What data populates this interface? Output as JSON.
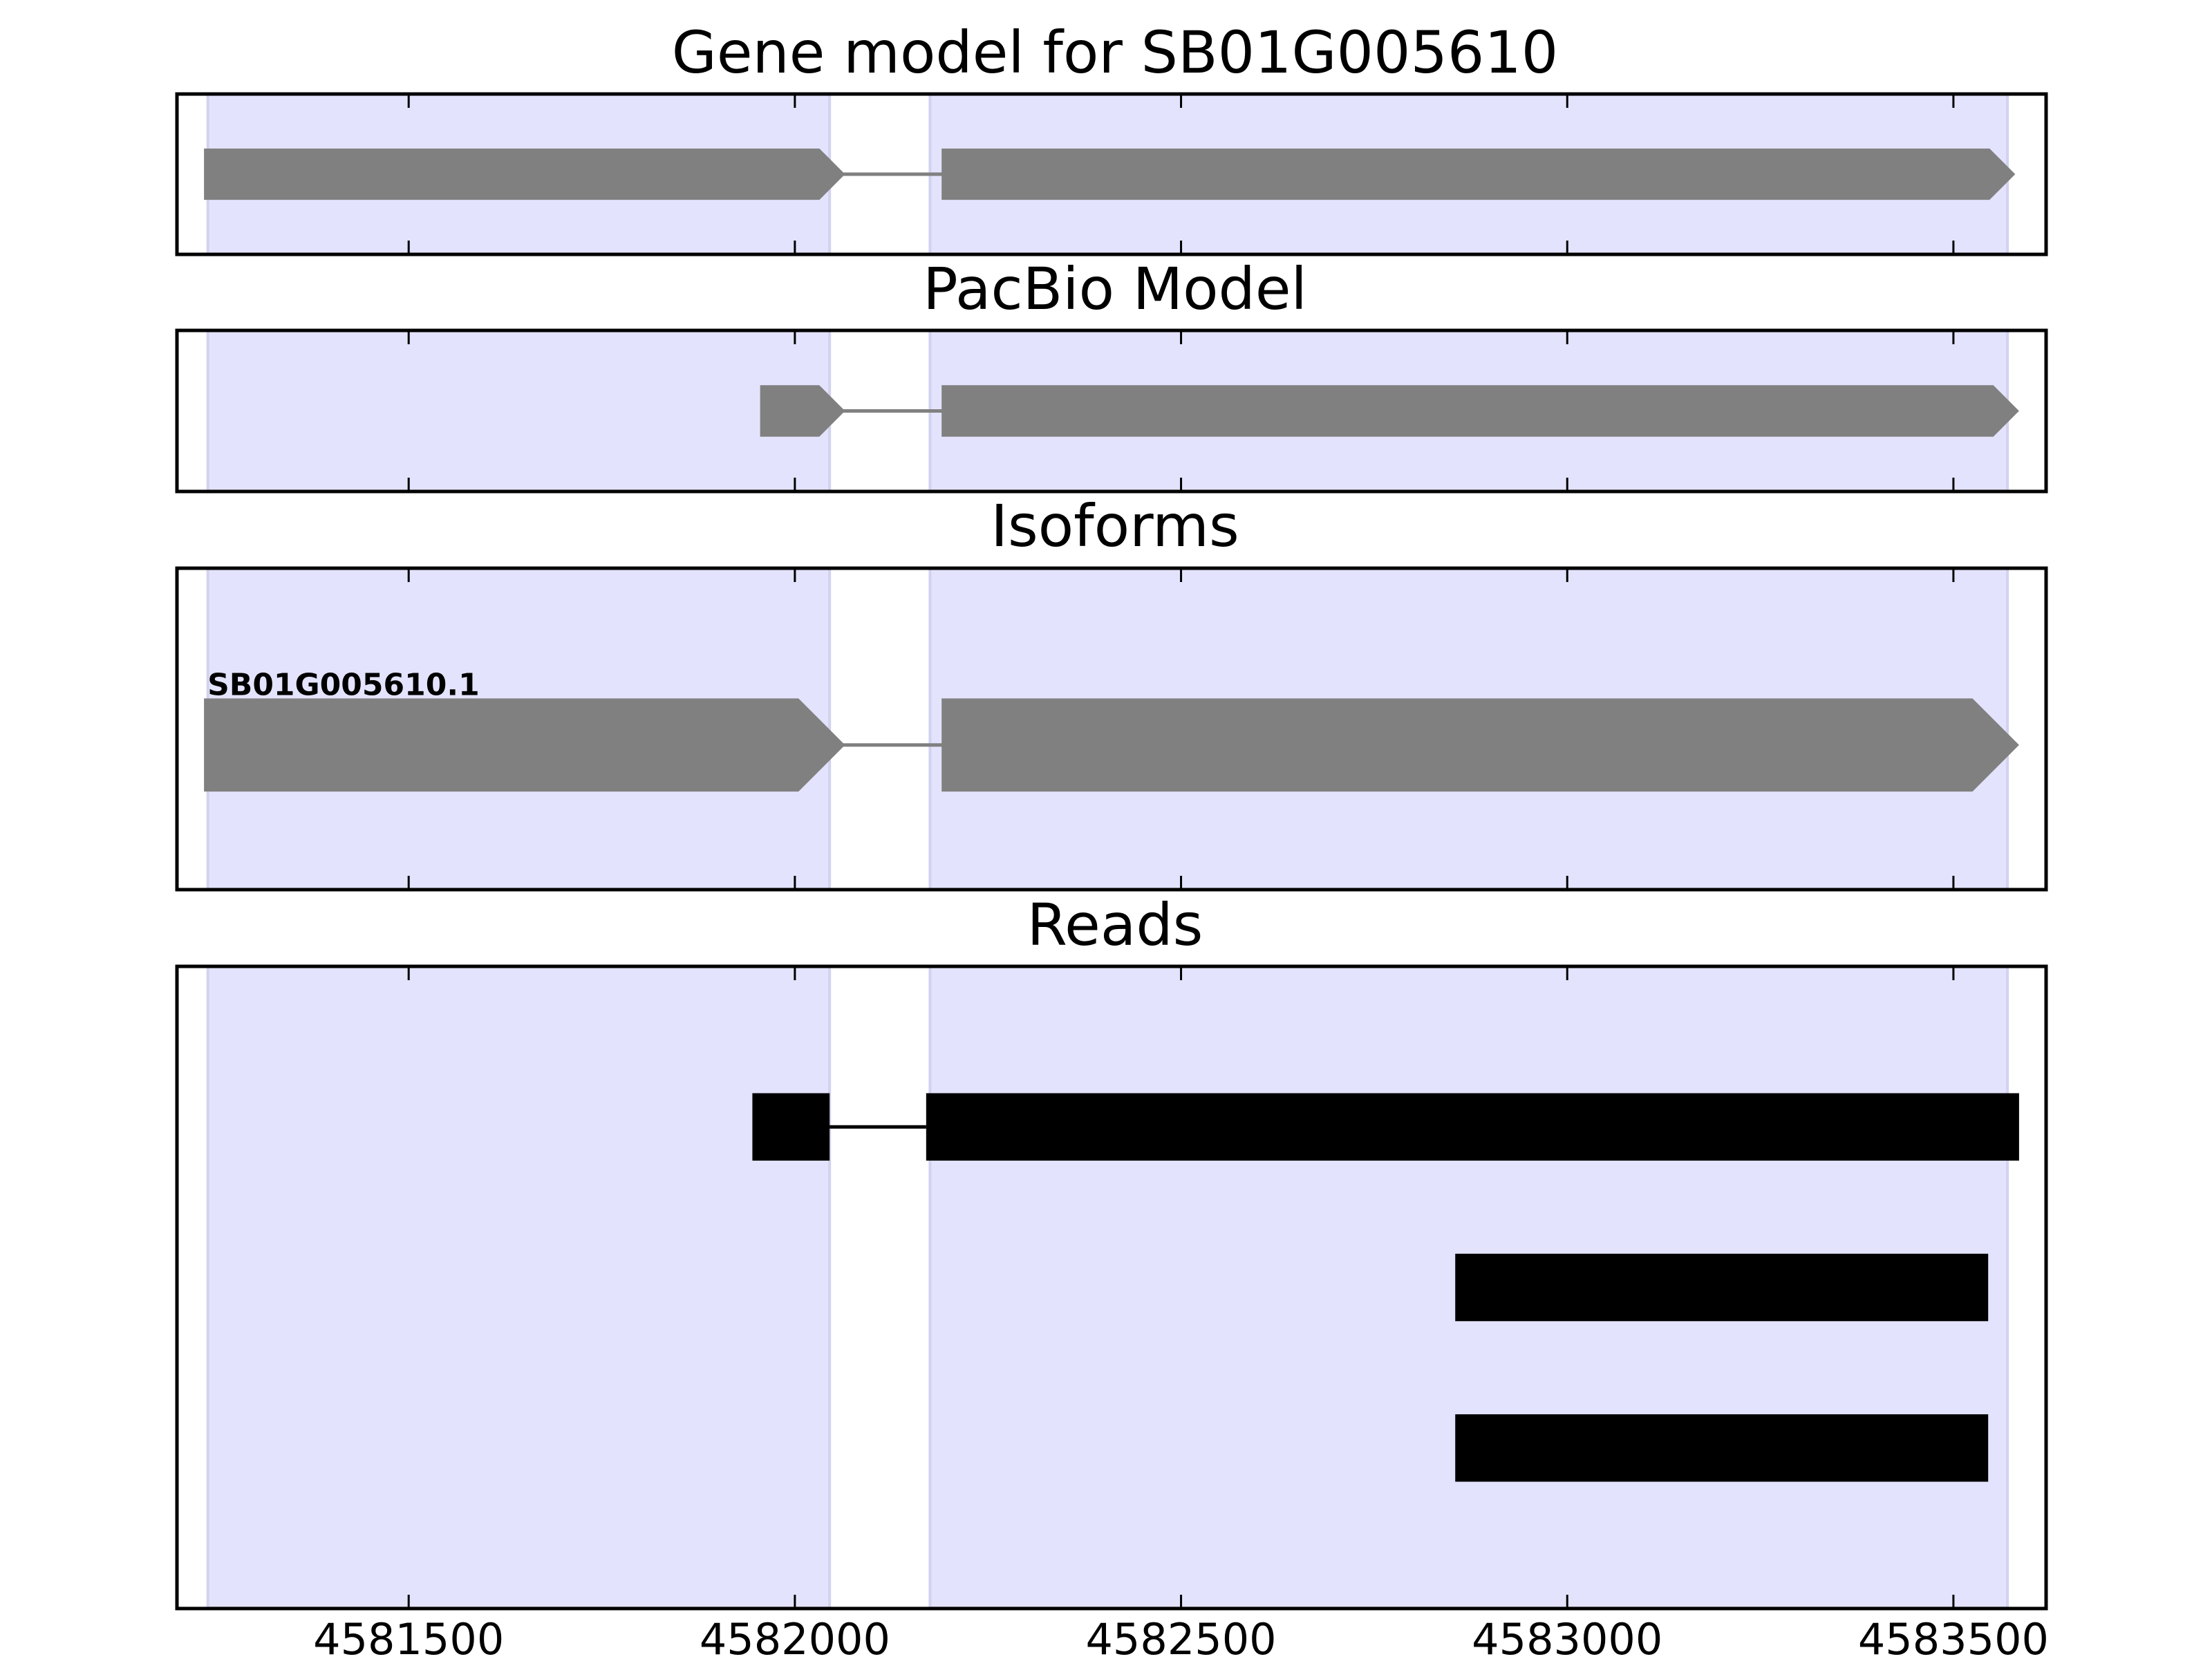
{
  "chart_data": {
    "type": "gene-track",
    "x_range": [
      4581200,
      4583620
    ],
    "x_ticks": [
      4581500,
      4582000,
      4582500,
      4583000,
      4583500
    ],
    "x_tick_labels": [
      "4581500",
      "4582000",
      "4582500",
      "4583000",
      "4583500"
    ],
    "exon_regions": [
      [
        4581240,
        4582045
      ],
      [
        4582175,
        4583570
      ]
    ],
    "colors": {
      "exon_shade": "#e3e3fd",
      "feature": "#808080",
      "read": "#000000",
      "frame": "#000000"
    },
    "panels": [
      {
        "id": "gene-model",
        "title": "Gene model for SB01G005610",
        "y_range": [
          0,
          1
        ],
        "features": [
          {
            "exons": [
              [
                4581235,
                4582065
              ],
              [
                4582190,
                4583580
              ]
            ],
            "y": 0.5,
            "height": 0.32,
            "strand": "+"
          }
        ]
      },
      {
        "id": "pacbio-model",
        "title": "PacBio Model",
        "y_range": [
          0,
          1
        ],
        "features": [
          {
            "exons": [
              [
                4581955,
                4582065
              ],
              [
                4582190,
                4583585
              ]
            ],
            "y": 0.5,
            "height": 0.32,
            "strand": "+"
          }
        ]
      },
      {
        "id": "isoforms",
        "title": "Isoforms",
        "y_range": [
          0,
          1
        ],
        "features": [
          {
            "label": "SB01G005610.1",
            "exons": [
              [
                4581235,
                4582065
              ],
              [
                4582190,
                4583585
              ]
            ],
            "y": 0.45,
            "height": 0.29,
            "strand": "+"
          }
        ]
      },
      {
        "id": "reads",
        "title": "Reads",
        "y_range": [
          0,
          1
        ],
        "reads": [
          {
            "exons": [
              [
                4581945,
                4582045
              ],
              [
                4582170,
                4583585
              ]
            ],
            "y": 0.75
          },
          {
            "exons": [
              [
                4582855,
                4583545
              ]
            ],
            "y": 0.5
          },
          {
            "exons": [
              [
                4582855,
                4583545
              ]
            ],
            "y": 0.25
          }
        ]
      }
    ]
  }
}
